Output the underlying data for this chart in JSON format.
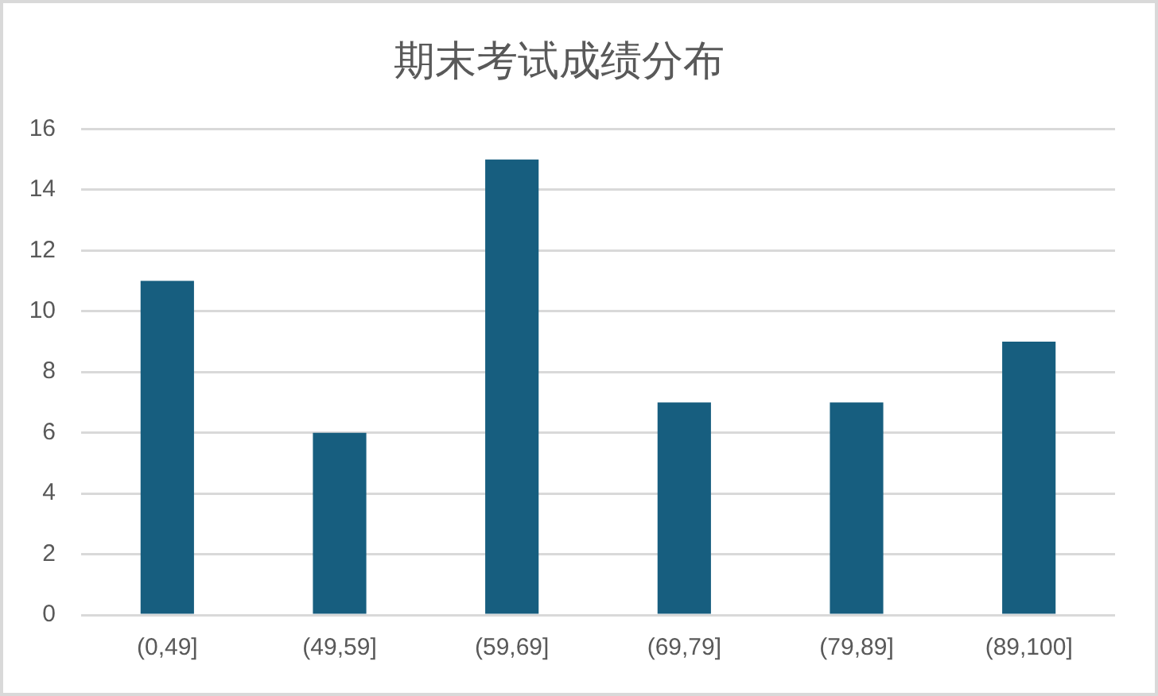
{
  "chart_data": {
    "type": "bar",
    "title": "期末考试成绩分布",
    "categories": [
      "(0,49]",
      "(49,59]",
      "(59,69]",
      "(69,79]",
      "(79,89]",
      "(89,100]"
    ],
    "values": [
      11,
      6,
      15,
      7,
      7,
      9
    ],
    "color": "#175e7f",
    "ylim": [
      0,
      16
    ],
    "yticks": [
      0,
      2,
      4,
      6,
      8,
      10,
      12,
      14,
      16
    ],
    "grid": "y"
  }
}
